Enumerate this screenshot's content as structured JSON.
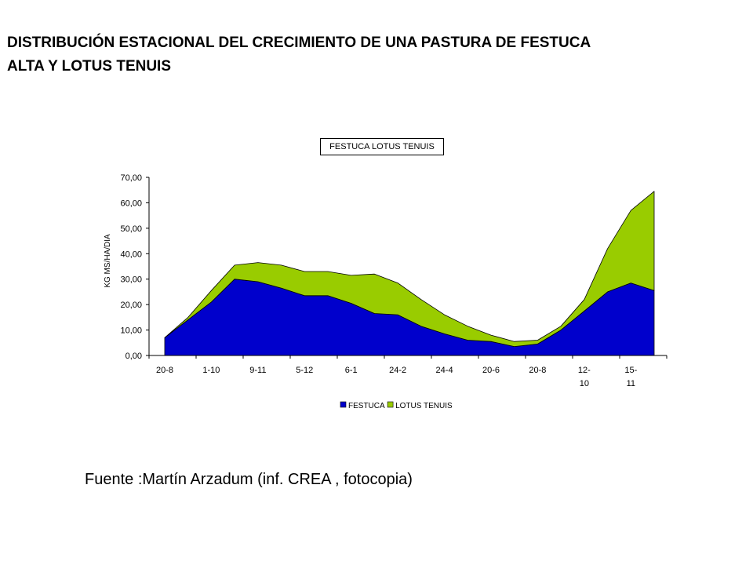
{
  "title_lines": [
    "DISTRIBUCIÓN ESTACIONAL DEL CRECIMIENTO DE UNA PASTURA DE FESTUCA",
    "ALTA Y LOTUS TENUIS"
  ],
  "source": "Fuente :Martín Arzadum (inf. CREA , fotocopia)",
  "chart_data": {
    "type": "area",
    "stacked": true,
    "title": "FESTUCA LOTUS TENUIS",
    "xlabel": "",
    "ylabel": "KG MS/HA/DIA",
    "ylim": [
      0,
      70
    ],
    "yticks": [
      "0,00",
      "10,00",
      "20,00",
      "30,00",
      "40,00",
      "50,00",
      "60,00",
      "70,00"
    ],
    "x_tick_labels": [
      "20-8",
      "1-10",
      "9-11",
      "5-12",
      "6-1",
      "24-2",
      "24-4",
      "20-6",
      "20-8",
      "12-\n10",
      "15-\n11"
    ],
    "x_tick_every": 2,
    "legend_position": "bottom",
    "series": [
      {
        "name": "FESTUCA",
        "color": "#0000cc",
        "values": [
          7,
          14,
          21,
          30,
          29,
          26.5,
          23.5,
          23.5,
          20.5,
          16.5,
          16,
          11.5,
          8.5,
          6,
          5.5,
          3.5,
          4.5,
          10,
          17.5,
          25,
          28.5,
          25.5
        ]
      },
      {
        "name": "LOTUS TENUIS",
        "color": "#99cc00",
        "values": [
          0,
          1,
          4.5,
          5.5,
          7.5,
          9,
          9.5,
          9.5,
          11,
          15.5,
          12.5,
          10.5,
          7.5,
          5.5,
          2.5,
          2,
          1.5,
          1.5,
          4.5,
          17,
          28.5,
          39
        ]
      }
    ]
  }
}
